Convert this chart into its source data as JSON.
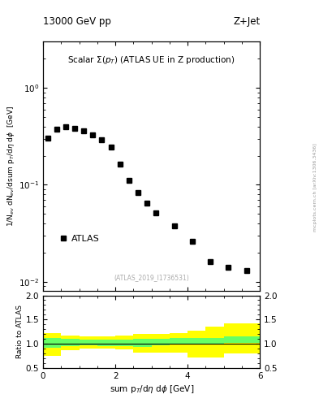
{
  "title_top_left": "13000 GeV pp",
  "title_top_right": "Z+Jet",
  "main_title": "Scalar $\\Sigma(p_T)$ (ATLAS UE in Z production)",
  "ylabel_main": "1/N$_{ev}$ dN$_{ev}$/dsum p$_T$/d$\\eta$ d$\\phi$  [GeV]",
  "xlabel": "sum p$_T$/d$\\eta$ d$\\phi$ [GeV]",
  "ylabel_ratio": "Ratio to ATLAS",
  "watermark": "(ATLAS_2019_I1736531)",
  "arxiv": "mcplots.cern.ch [arXiv:1306.3436]",
  "data_x": [
    0.125,
    0.375,
    0.625,
    0.875,
    1.125,
    1.375,
    1.625,
    1.875,
    2.125,
    2.375,
    2.625,
    2.875,
    3.125,
    3.625,
    4.125,
    4.625,
    5.125,
    5.625
  ],
  "data_y": [
    0.305,
    0.375,
    0.4,
    0.385,
    0.36,
    0.33,
    0.29,
    0.245,
    0.165,
    0.112,
    0.083,
    0.065,
    0.051,
    0.038,
    0.026,
    0.016,
    0.014,
    0.013
  ],
  "ratio_x_edges": [
    0.0,
    0.5,
    1.0,
    1.5,
    2.0,
    2.5,
    3.0,
    3.5,
    4.0,
    4.5,
    5.0,
    5.5,
    6.0
  ],
  "ratio_green_lo": [
    0.92,
    0.95,
    0.97,
    0.96,
    0.95,
    0.94,
    0.97,
    1.0,
    1.0,
    1.0,
    1.02,
    1.02
  ],
  "ratio_green_hi": [
    1.12,
    1.1,
    1.08,
    1.08,
    1.08,
    1.1,
    1.1,
    1.12,
    1.12,
    1.12,
    1.15,
    1.15
  ],
  "ratio_yellow_lo": [
    0.75,
    0.87,
    0.9,
    0.9,
    0.88,
    0.82,
    0.82,
    0.82,
    0.72,
    0.72,
    0.8,
    0.8
  ],
  "ratio_yellow_hi": [
    1.22,
    1.18,
    1.16,
    1.16,
    1.18,
    1.2,
    1.2,
    1.22,
    1.28,
    1.35,
    1.42,
    1.42
  ],
  "xlim": [
    0,
    6
  ],
  "ylim_main": [
    0.008,
    3.0
  ],
  "ylim_ratio": [
    0.5,
    2.0
  ],
  "legend_label": "ATLAS",
  "marker_color": "black",
  "marker": "s",
  "marker_size": 4.5,
  "background_color": "#ffffff"
}
